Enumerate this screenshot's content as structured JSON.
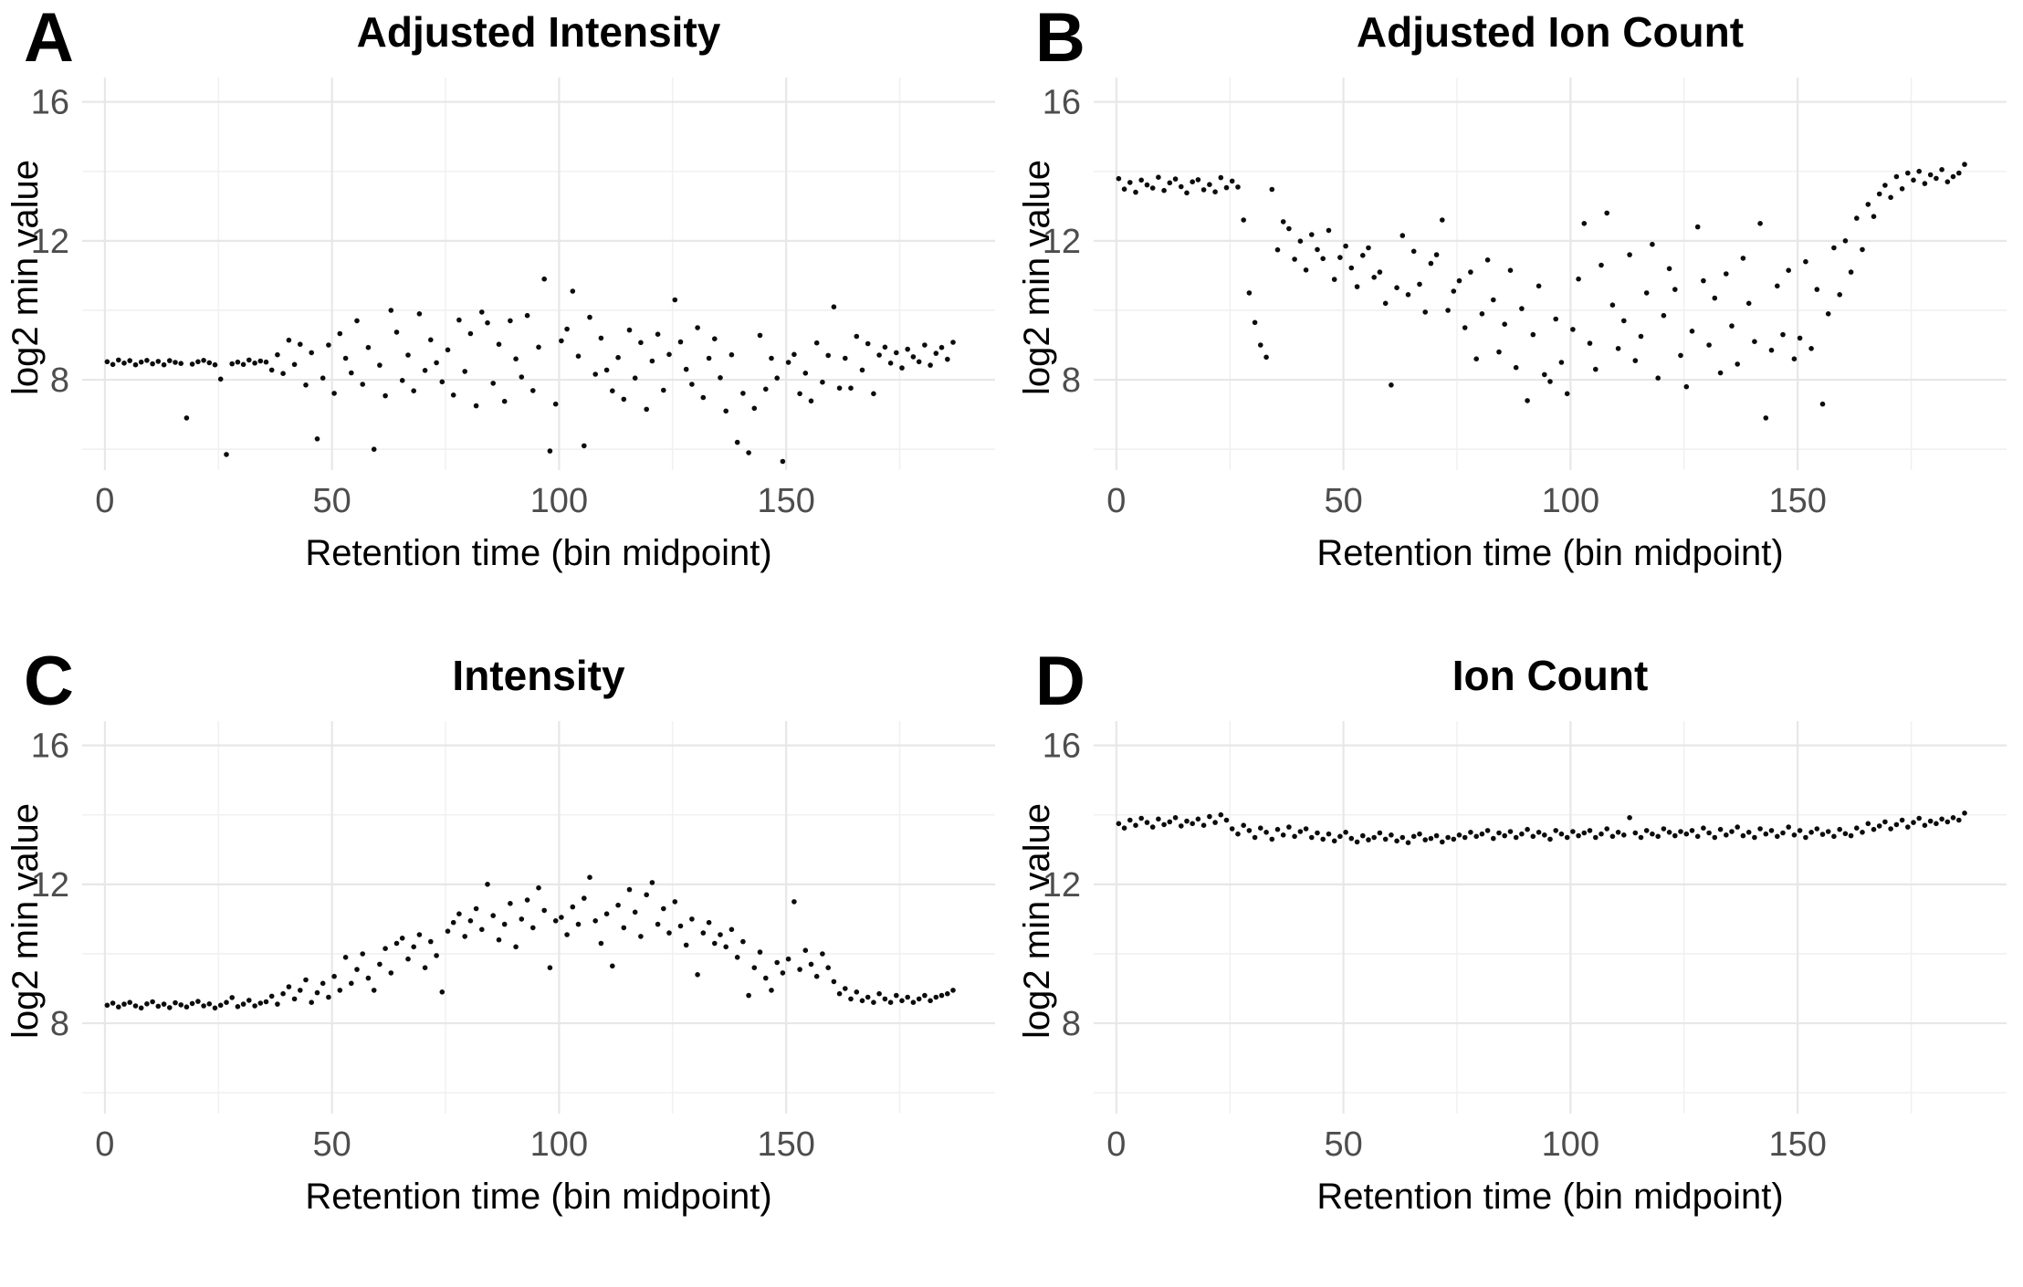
{
  "figure_title": "",
  "chart_data": {
    "type": "scatter",
    "layout": "2x2-panels",
    "x_label": "Retention time (bin midpoint)",
    "y_label": "log2 min value",
    "x_ticks": [
      0,
      50,
      100,
      150
    ],
    "x_minor_ticks": [
      25,
      75,
      125,
      175
    ],
    "y_ticks": [
      16,
      12,
      8
    ],
    "y_minor_ticks": [
      14,
      10,
      6
    ],
    "xlim": [
      -5,
      196
    ],
    "ylim": [
      5.4,
      16.7
    ],
    "grid": "major+minor",
    "legend": "none",
    "point_color": "#0c0c0c",
    "grid_major_color": "#e7e7e7",
    "grid_minor_color": "#f1f1f1",
    "tick_label_color": "#4d4d4d",
    "x": [
      0.5,
      1.75,
      3,
      4.25,
      5.5,
      6.75,
      8,
      9.25,
      10.5,
      11.75,
      13,
      14.25,
      15.5,
      16.75,
      18,
      19.25,
      20.5,
      21.75,
      23,
      24.25,
      25.5,
      26.75,
      28,
      29.25,
      30.5,
      31.75,
      33,
      34.25,
      35.5,
      36.75,
      38,
      39.25,
      40.5,
      41.75,
      43,
      44.25,
      45.5,
      46.75,
      48,
      49.25,
      50.5,
      51.75,
      53,
      54.25,
      55.5,
      56.75,
      58,
      59.25,
      60.5,
      61.75,
      63,
      64.25,
      65.5,
      66.75,
      68,
      69.25,
      70.5,
      71.75,
      73,
      74.25,
      75.5,
      76.75,
      78,
      79.25,
      80.5,
      81.75,
      83,
      84.25,
      85.5,
      86.75,
      88,
      89.25,
      90.5,
      91.75,
      93,
      94.25,
      95.5,
      96.75,
      98,
      99.25,
      100.5,
      101.75,
      103,
      104.25,
      105.5,
      106.75,
      108,
      109.25,
      110.5,
      111.75,
      113,
      114.25,
      115.5,
      116.75,
      118,
      119.25,
      120.5,
      121.75,
      123,
      124.25,
      125.5,
      126.75,
      128,
      129.25,
      130.5,
      131.75,
      133,
      134.25,
      135.5,
      136.75,
      138,
      139.25,
      140.5,
      141.75,
      143,
      144.25,
      145.5,
      146.75,
      148,
      149.25,
      150.5,
      151.75,
      153,
      154.25,
      155.5,
      156.75,
      158,
      159.25,
      160.5,
      161.75,
      163,
      164.25,
      165.5,
      166.75,
      168,
      169.25,
      170.5,
      171.75,
      173,
      174.25,
      175.5,
      176.75,
      178,
      179.25,
      180.5,
      181.75,
      183,
      184.25,
      185.5,
      186.75
    ],
    "panels": [
      {
        "letter": "A",
        "title": "Adjusted Intensity",
        "y": [
          8.52,
          8.44,
          8.57,
          8.48,
          8.55,
          8.43,
          8.51,
          8.56,
          8.46,
          8.53,
          8.43,
          8.55,
          8.5,
          8.47,
          6.9,
          8.45,
          8.52,
          8.56,
          8.49,
          8.43,
          8.02,
          5.85,
          8.46,
          8.51,
          8.44,
          8.57,
          8.48,
          8.54,
          8.51,
          8.28,
          8.72,
          8.18,
          9.14,
          8.44,
          9.02,
          7.85,
          8.78,
          6.3,
          8.05,
          9.0,
          7.61,
          9.33,
          8.62,
          8.2,
          9.7,
          7.87,
          8.93,
          6.0,
          8.42,
          7.54,
          10.0,
          9.37,
          7.98,
          8.71,
          7.68,
          9.9,
          8.27,
          9.15,
          8.49,
          7.94,
          8.86,
          7.56,
          9.72,
          8.24,
          9.33,
          7.25,
          9.95,
          9.64,
          7.9,
          9.02,
          7.38,
          9.7,
          8.6,
          8.08,
          9.85,
          7.69,
          8.94,
          10.9,
          5.95,
          7.3,
          9.12,
          9.46,
          10.55,
          8.68,
          6.1,
          9.8,
          8.16,
          9.2,
          8.28,
          7.68,
          8.64,
          7.44,
          9.43,
          8.05,
          9.07,
          7.15,
          8.54,
          9.31,
          7.7,
          8.73,
          10.3,
          9.09,
          8.3,
          7.87,
          9.5,
          7.49,
          8.62,
          9.18,
          8.06,
          7.1,
          8.72,
          6.2,
          7.61,
          5.9,
          7.18,
          9.28,
          7.73,
          8.62,
          8.05,
          5.65,
          8.5,
          8.73,
          7.6,
          8.19,
          7.39,
          9.06,
          7.93,
          8.7,
          10.1,
          7.76,
          8.62,
          7.76,
          9.25,
          8.28,
          9.04,
          7.6,
          8.71,
          8.94,
          8.48,
          8.78,
          8.34,
          8.88,
          8.66,
          8.52,
          9.0,
          8.42,
          8.76,
          8.93,
          8.59,
          9.08
        ]
      },
      {
        "letter": "B",
        "title": "Adjusted Ion Count",
        "y": [
          13.79,
          13.49,
          13.68,
          13.4,
          13.75,
          13.61,
          13.52,
          13.83,
          13.45,
          13.67,
          13.78,
          13.56,
          13.38,
          13.7,
          13.76,
          13.47,
          13.62,
          13.41,
          13.82,
          13.53,
          13.72,
          13.55,
          12.6,
          10.5,
          9.65,
          9.0,
          8.65,
          13.48,
          11.74,
          12.55,
          12.35,
          11.47,
          11.99,
          11.16,
          12.18,
          11.75,
          11.49,
          12.3,
          10.89,
          11.52,
          11.85,
          11.22,
          10.68,
          11.58,
          11.8,
          10.95,
          11.1,
          10.2,
          7.85,
          10.65,
          12.15,
          10.45,
          11.7,
          10.75,
          9.95,
          11.35,
          11.6,
          12.6,
          10.0,
          10.55,
          10.85,
          9.5,
          11.1,
          8.6,
          9.9,
          11.45,
          10.3,
          8.8,
          9.6,
          11.15,
          8.35,
          10.05,
          7.4,
          9.3,
          10.7,
          8.15,
          7.95,
          9.75,
          8.5,
          7.6,
          9.45,
          10.9,
          12.5,
          9.05,
          8.3,
          11.3,
          12.8,
          10.15,
          8.9,
          9.7,
          11.6,
          8.55,
          9.25,
          10.5,
          11.9,
          8.05,
          9.85,
          11.2,
          10.6,
          8.7,
          7.8,
          9.4,
          12.4,
          10.85,
          9.0,
          10.35,
          8.2,
          11.05,
          9.55,
          8.45,
          11.5,
          10.2,
          9.1,
          12.5,
          6.9,
          8.85,
          10.7,
          9.3,
          11.15,
          8.6,
          9.2,
          11.4,
          8.9,
          10.6,
          7.3,
          9.9,
          11.8,
          10.45,
          12.0,
          11.1,
          12.65,
          11.75,
          13.05,
          12.7,
          13.35,
          13.6,
          13.25,
          13.85,
          13.5,
          13.95,
          13.75,
          14.0,
          13.65,
          13.9,
          13.8,
          14.05,
          13.7,
          13.85,
          13.95,
          14.2
        ]
      },
      {
        "letter": "C",
        "title": "Intensity",
        "y": [
          8.52,
          8.58,
          8.47,
          8.55,
          8.6,
          8.5,
          8.44,
          8.56,
          8.62,
          8.49,
          8.55,
          8.45,
          8.59,
          8.53,
          8.47,
          8.57,
          8.63,
          8.5,
          8.56,
          8.44,
          8.52,
          8.6,
          8.74,
          8.48,
          8.55,
          8.66,
          8.5,
          8.58,
          8.62,
          8.78,
          8.55,
          8.85,
          9.05,
          8.7,
          8.95,
          9.25,
          8.6,
          8.88,
          9.15,
          8.75,
          9.35,
          8.95,
          9.9,
          9.15,
          9.55,
          10.0,
          9.3,
          8.95,
          9.7,
          10.15,
          9.45,
          10.3,
          10.45,
          9.85,
          10.2,
          10.55,
          9.6,
          10.35,
          9.95,
          8.9,
          10.65,
          10.9,
          11.15,
          10.5,
          10.95,
          11.3,
          10.7,
          12.0,
          11.1,
          10.4,
          10.85,
          11.45,
          10.2,
          11.0,
          11.55,
          10.75,
          11.9,
          11.25,
          9.6,
          10.95,
          11.05,
          10.55,
          11.35,
          10.85,
          11.6,
          12.2,
          10.95,
          10.3,
          11.15,
          9.65,
          11.4,
          10.75,
          11.85,
          11.2,
          10.5,
          11.7,
          12.05,
          10.85,
          11.3,
          10.6,
          11.5,
          10.8,
          10.25,
          11.0,
          9.4,
          10.6,
          10.9,
          10.3,
          10.55,
          10.2,
          10.7,
          9.9,
          10.35,
          8.8,
          9.6,
          10.05,
          9.3,
          8.95,
          9.75,
          9.45,
          9.85,
          11.5,
          9.55,
          10.1,
          9.7,
          9.35,
          10.0,
          9.6,
          9.2,
          8.85,
          9.0,
          8.7,
          8.9,
          8.65,
          8.75,
          8.6,
          8.85,
          8.7,
          8.6,
          8.8,
          8.65,
          8.75,
          8.6,
          8.7,
          8.8,
          8.65,
          8.75,
          8.8,
          8.85,
          8.95
        ]
      },
      {
        "letter": "D",
        "title": "Ion Count",
        "y": [
          13.75,
          13.62,
          13.85,
          13.7,
          13.9,
          13.78,
          13.65,
          13.88,
          13.72,
          13.8,
          13.92,
          13.68,
          13.82,
          13.75,
          13.88,
          13.7,
          13.95,
          13.78,
          14.0,
          13.85,
          13.6,
          13.45,
          13.7,
          13.55,
          13.35,
          13.62,
          13.5,
          13.3,
          13.58,
          13.42,
          13.65,
          13.38,
          13.52,
          13.6,
          13.35,
          13.48,
          13.3,
          13.45,
          13.25,
          13.38,
          13.5,
          13.32,
          13.22,
          13.4,
          13.28,
          13.35,
          13.48,
          13.3,
          13.42,
          13.25,
          13.35,
          13.2,
          13.38,
          13.45,
          13.28,
          13.32,
          13.4,
          13.22,
          13.35,
          13.3,
          13.42,
          13.35,
          13.5,
          13.38,
          13.45,
          13.55,
          13.32,
          13.48,
          13.4,
          13.52,
          13.35,
          13.45,
          13.58,
          13.38,
          13.5,
          13.42,
          13.3,
          13.55,
          13.45,
          13.35,
          13.52,
          13.4,
          13.48,
          13.55,
          13.35,
          13.45,
          13.6,
          13.38,
          13.5,
          13.42,
          13.92,
          13.48,
          13.35,
          13.55,
          13.45,
          13.38,
          13.6,
          13.5,
          13.4,
          13.52,
          13.45,
          13.55,
          13.38,
          13.62,
          13.48,
          13.35,
          13.58,
          13.42,
          13.52,
          13.65,
          13.4,
          13.5,
          13.35,
          13.6,
          13.45,
          13.55,
          13.38,
          13.48,
          13.65,
          13.42,
          13.55,
          13.35,
          13.5,
          13.6,
          13.44,
          13.52,
          13.38,
          13.58,
          13.46,
          13.4,
          13.62,
          13.5,
          13.75,
          13.58,
          13.68,
          13.8,
          13.6,
          13.72,
          13.85,
          13.65,
          13.78,
          13.9,
          13.7,
          13.82,
          13.75,
          13.88,
          13.8,
          13.92,
          13.85,
          14.05
        ]
      }
    ]
  }
}
